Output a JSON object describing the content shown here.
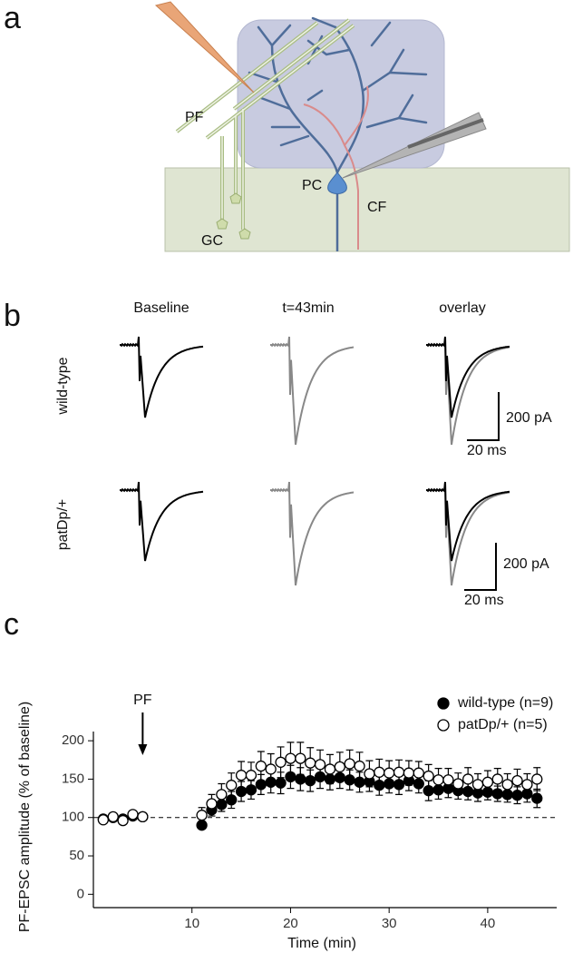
{
  "panel_labels": [
    "a",
    "b",
    "c"
  ],
  "diagram": {
    "pf": "PF",
    "pc": "PC",
    "cf": "CF",
    "gc": "GC"
  },
  "traces": {
    "columns": [
      "Baseline",
      "t=43min",
      "overlay"
    ],
    "rows": [
      "wild-type",
      "patDp/+"
    ],
    "scale_bars": [
      {
        "current": "200 pA",
        "time": "20 ms"
      },
      {
        "current": "200 pA",
        "time": "20 ms"
      }
    ]
  },
  "chart_data": {
    "type": "scatter",
    "x_label": "Time (min)",
    "y_label": "PF-EPSC amplitude (% of baseline)",
    "xlim": [
      0,
      47
    ],
    "ylim": [
      -15,
      212
    ],
    "xticks": [
      10,
      20,
      30,
      40
    ],
    "yticks": [
      0,
      50,
      100,
      150,
      200
    ],
    "reference_line": 100,
    "legend": "top-right",
    "annotations": [
      {
        "text": "PF",
        "x": 5
      }
    ],
    "x": [
      1,
      2,
      3,
      4,
      5,
      11,
      12,
      13,
      14,
      15,
      16,
      17,
      18,
      19,
      20,
      21,
      22,
      23,
      24,
      25,
      26,
      27,
      28,
      29,
      30,
      31,
      32,
      33,
      34,
      35,
      36,
      37,
      38,
      39,
      40,
      41,
      42,
      43,
      44,
      45
    ],
    "series": [
      {
        "name": "wild-type (n=9)",
        "color": "#000000",
        "marker": "filled",
        "values": [
          98,
          100,
          98,
          102,
          101,
          90,
          110,
          117,
          123,
          134,
          136,
          143,
          146,
          145,
          153,
          150,
          148,
          153,
          150,
          152,
          149,
          146,
          147,
          142,
          144,
          143,
          148,
          144,
          135,
          136,
          138,
          135,
          134,
          132,
          133,
          131,
          130,
          129,
          131,
          125
        ],
        "errors": [
          2,
          3,
          3,
          2,
          2,
          5,
          8,
          9,
          11,
          13,
          12,
          13,
          14,
          14,
          15,
          15,
          14,
          15,
          14,
          14,
          13,
          13,
          13,
          13,
          12,
          13,
          13,
          12,
          13,
          12,
          12,
          11,
          11,
          11,
          10,
          10,
          10,
          11,
          11,
          12
        ]
      },
      {
        "name": "patDp/+ (n=5)",
        "color": "#000000",
        "marker": "open",
        "values": [
          97,
          101,
          96,
          104,
          101,
          103,
          118,
          130,
          142,
          155,
          155,
          167,
          163,
          172,
          177,
          177,
          171,
          169,
          163,
          166,
          170,
          167,
          157,
          159,
          158,
          159,
          158,
          158,
          154,
          149,
          149,
          144,
          150,
          143,
          146,
          150,
          143,
          148,
          143,
          150
        ],
        "errors": [
          2,
          3,
          3,
          3,
          2,
          10,
          12,
          14,
          16,
          18,
          17,
          19,
          20,
          20,
          21,
          21,
          20,
          19,
          19,
          19,
          18,
          18,
          17,
          17,
          16,
          16,
          16,
          15,
          15,
          15,
          15,
          14,
          15,
          14,
          15,
          14,
          14,
          15,
          14,
          15
        ]
      }
    ]
  }
}
